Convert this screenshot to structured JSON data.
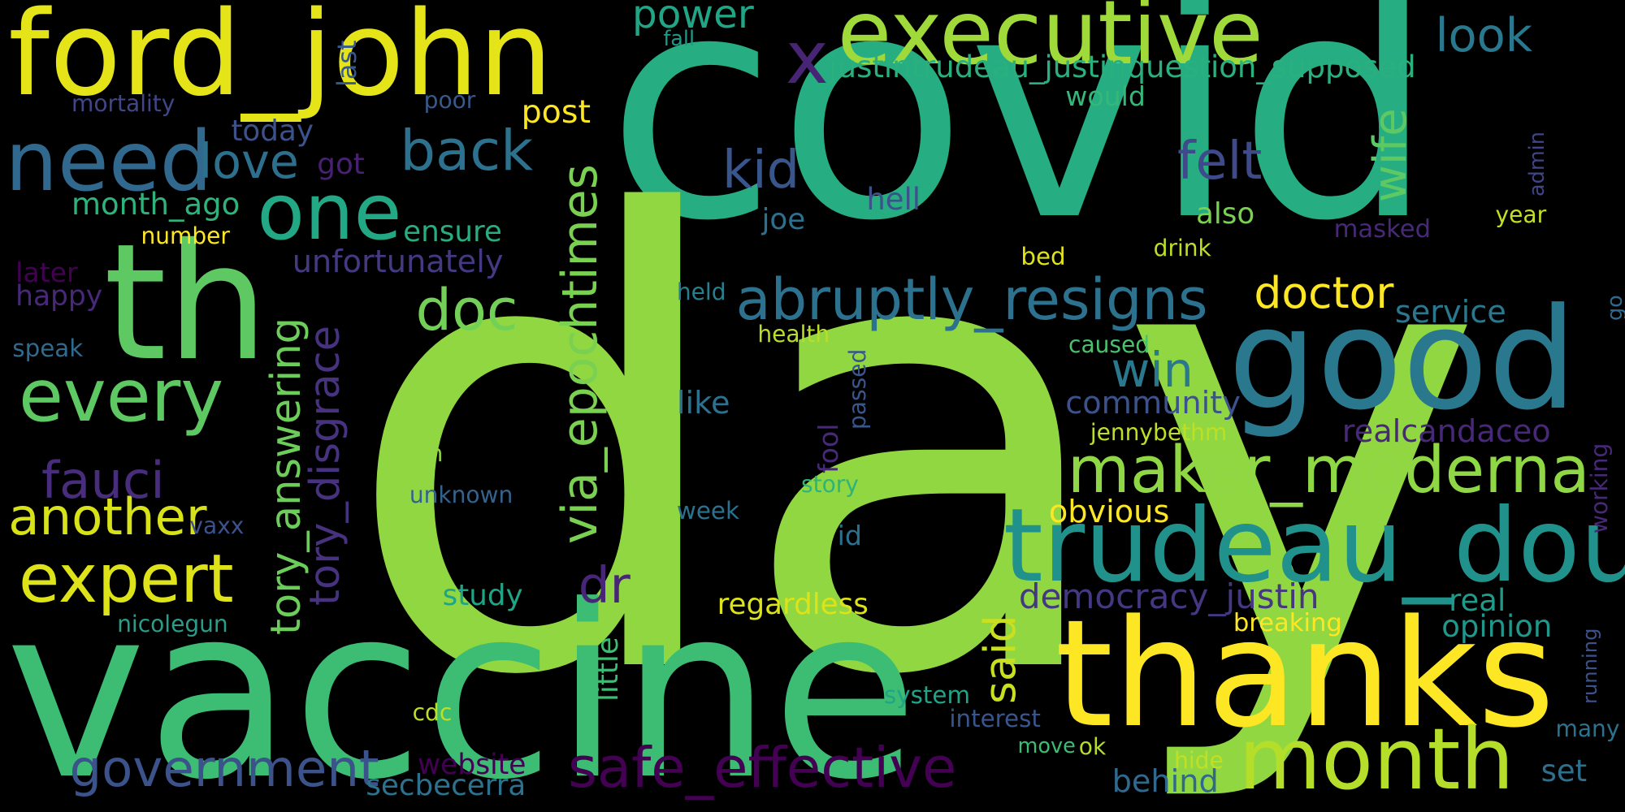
{
  "words": [
    {
      "text": "covid",
      "color": "#26AD81"
    },
    {
      "text": "day",
      "color": "#91D742"
    },
    {
      "text": "vaccine",
      "color": "#3DBC74"
    },
    {
      "text": "ford_john",
      "color": "#E5E419"
    },
    {
      "text": "thanks",
      "color": "#FDE725"
    },
    {
      "text": "good",
      "color": "#2A788E"
    },
    {
      "text": "th",
      "color": "#5EC962"
    },
    {
      "text": "trudeau_doug",
      "color": "#21918C"
    },
    {
      "text": "month",
      "color": "#B5DE2B"
    },
    {
      "text": "executive",
      "color": "#9FDA3A"
    },
    {
      "text": "one",
      "color": "#22A884"
    },
    {
      "text": "need",
      "color": "#31688E"
    },
    {
      "text": "safe_effective",
      "color": "#440154"
    },
    {
      "text": "maker_moderna",
      "color": "#8FD744"
    },
    {
      "text": "abruptly_resigns",
      "color": "#2C728E"
    },
    {
      "text": "every",
      "color": "#5EC962"
    },
    {
      "text": "government",
      "color": "#3B528B"
    },
    {
      "text": "expert",
      "color": "#DDE318"
    },
    {
      "text": "via_epochtimes",
      "color": "#7AD151"
    },
    {
      "text": "another",
      "color": "#D8E219"
    },
    {
      "text": "fauci",
      "color": "#472D7B"
    },
    {
      "text": "tory_answering",
      "color": "#6CCD5A"
    },
    {
      "text": "tory_disgrace",
      "color": "#46327E"
    },
    {
      "text": "back",
      "color": "#2C728E"
    },
    {
      "text": "love",
      "color": "#2D708E"
    },
    {
      "text": "doc",
      "color": "#73D056"
    },
    {
      "text": "felt",
      "color": "#3E4A89"
    },
    {
      "text": "kid",
      "color": "#39568C"
    },
    {
      "text": "doctor",
      "color": "#FDE725"
    },
    {
      "text": "wife",
      "color": "#5EC962"
    },
    {
      "text": "win",
      "color": "#2A788E"
    },
    {
      "text": "said",
      "color": "#C8E020"
    },
    {
      "text": "dr",
      "color": "#482677"
    },
    {
      "text": "look",
      "color": "#2A788E"
    },
    {
      "text": "x",
      "color": "#482475"
    },
    {
      "text": "justintrudeau_justinquestion_supposed",
      "color": "#2AB07F"
    },
    {
      "text": "power",
      "color": "#21A685"
    },
    {
      "text": "post",
      "color": "#FDE725"
    },
    {
      "text": "democracy_justin",
      "color": "#453781"
    },
    {
      "text": "service",
      "color": "#2A788E"
    },
    {
      "text": "community",
      "color": "#3B528B"
    },
    {
      "text": "realcandaceo",
      "color": "#482878"
    },
    {
      "text": "obvious",
      "color": "#FDE725"
    },
    {
      "text": "opinion",
      "color": "#1F988B"
    },
    {
      "text": "regardless",
      "color": "#DCE319"
    },
    {
      "text": "breaking",
      "color": "#FDE725"
    },
    {
      "text": "real",
      "color": "#1E9B8A"
    },
    {
      "text": "set",
      "color": "#2D708E"
    },
    {
      "text": "behind",
      "color": "#31688E"
    },
    {
      "text": "secbecerra",
      "color": "#2C728E"
    },
    {
      "text": "website",
      "color": "#440154"
    },
    {
      "text": "little",
      "color": "#3DBC74"
    },
    {
      "text": "study",
      "color": "#20A486"
    },
    {
      "text": "unfortunately",
      "color": "#443A83"
    },
    {
      "text": "ensure",
      "color": "#27AD81"
    },
    {
      "text": "month_ago",
      "color": "#2EB37C"
    },
    {
      "text": "got",
      "color": "#482173"
    },
    {
      "text": "today",
      "color": "#3B528B"
    },
    {
      "text": "mortality",
      "color": "#404688"
    },
    {
      "text": "poor",
      "color": "#38598C"
    },
    {
      "text": "last",
      "color": "#38598C"
    },
    {
      "text": "fall",
      "color": "#1F9A8A"
    },
    {
      "text": "would",
      "color": "#35B779"
    },
    {
      "text": "hell",
      "color": "#3B528B"
    },
    {
      "text": "also",
      "color": "#7AD151"
    },
    {
      "text": "joe",
      "color": "#2D708E"
    },
    {
      "text": "masked",
      "color": "#482878"
    },
    {
      "text": "year",
      "color": "#C5E021"
    },
    {
      "text": "admin",
      "color": "#414487"
    },
    {
      "text": "drink",
      "color": "#BDDF26"
    },
    {
      "text": "bed",
      "color": "#DFE318"
    },
    {
      "text": "number",
      "color": "#FDE725"
    },
    {
      "text": "later",
      "color": "#440154"
    },
    {
      "text": "happy",
      "color": "#482878"
    },
    {
      "text": "speak",
      "color": "#306A8E"
    },
    {
      "text": "held",
      "color": "#277F8E"
    },
    {
      "text": "health",
      "color": "#B8DE29"
    },
    {
      "text": "caused",
      "color": "#4AC16D"
    },
    {
      "text": "go",
      "color": "#31688E"
    },
    {
      "text": "passed",
      "color": "#39568C"
    },
    {
      "text": "like",
      "color": "#2C728E"
    },
    {
      "text": "jennybethm",
      "color": "#BDDF26"
    },
    {
      "text": "fool",
      "color": "#482878"
    },
    {
      "text": "con",
      "color": "#8FD744"
    },
    {
      "text": "unknown",
      "color": "#33638D"
    },
    {
      "text": "story",
      "color": "#2EB37C"
    },
    {
      "text": "week",
      "color": "#2C728E"
    },
    {
      "text": "id",
      "color": "#2D708E"
    },
    {
      "text": "vaxx",
      "color": "#3B528B"
    },
    {
      "text": "working",
      "color": "#482878"
    },
    {
      "text": "nicolegun",
      "color": "#2A9C89"
    },
    {
      "text": "cdc",
      "color": "#BDDF26"
    },
    {
      "text": "system",
      "color": "#20A486"
    },
    {
      "text": "interest",
      "color": "#39568C"
    },
    {
      "text": "move",
      "color": "#3DBC74"
    },
    {
      "text": "ok",
      "color": "#B5DE2B"
    },
    {
      "text": "hide",
      "color": "#C2DF23"
    },
    {
      "text": "running",
      "color": "#3B528B"
    },
    {
      "text": "many",
      "color": "#2C728E"
    }
  ]
}
